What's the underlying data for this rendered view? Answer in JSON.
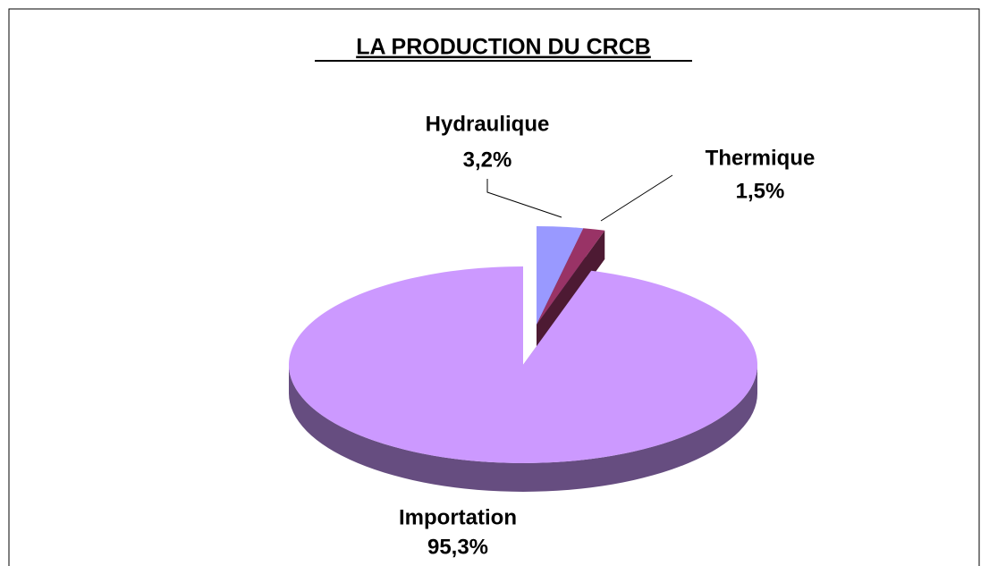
{
  "chart_data": {
    "type": "pie",
    "title": "LA PRODUCTION DU CRCB",
    "categories": [
      "Hydraulique",
      "Thermique",
      "Importation"
    ],
    "values": [
      3.2,
      1.5,
      95.3
    ],
    "value_labels": [
      "3,2%",
      "1,5%",
      "95,3%"
    ],
    "colors": [
      "#9999ff",
      "#993366",
      "#cc99ff"
    ],
    "exploded": [
      "Hydraulique",
      "Thermique"
    ]
  }
}
